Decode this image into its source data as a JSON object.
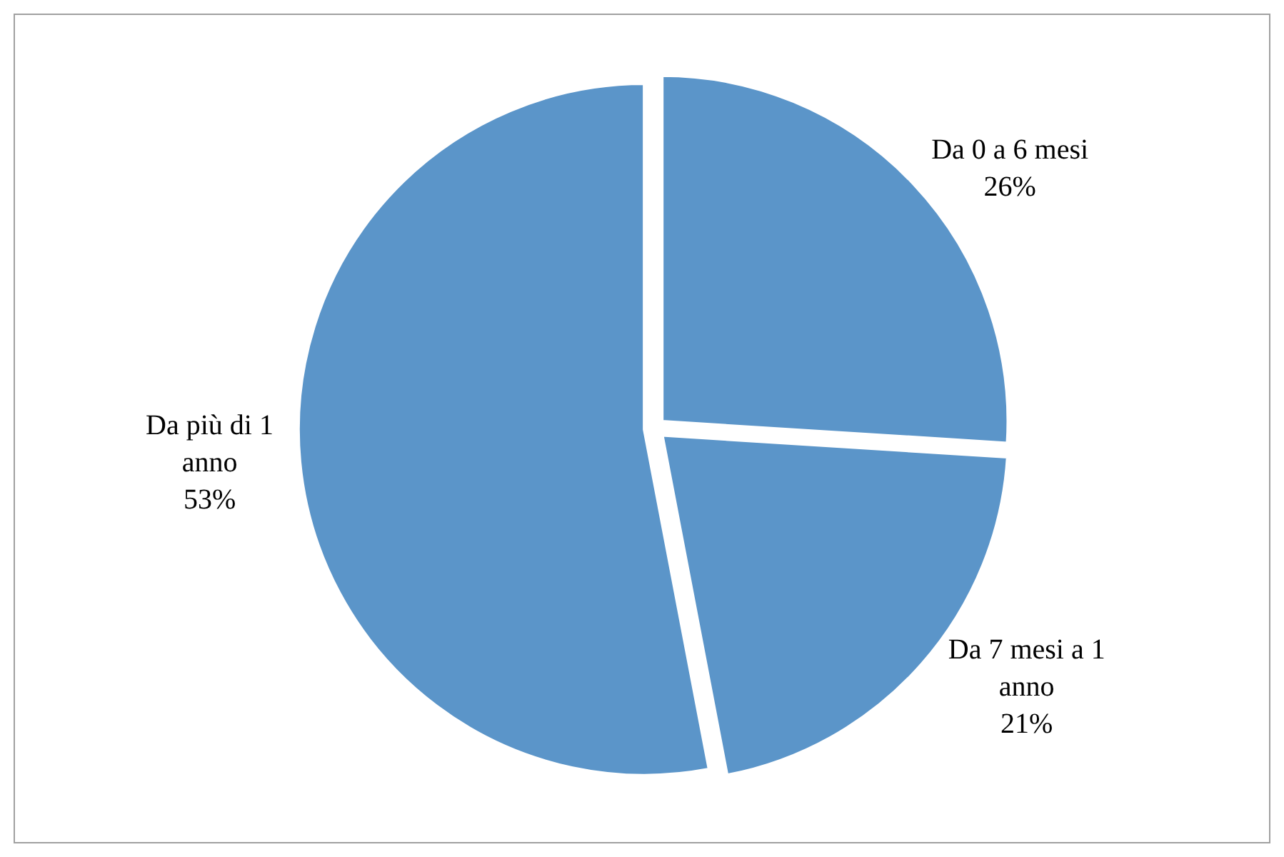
{
  "chart_data": {
    "type": "pie",
    "categories": [
      "Da 0 a 6 mesi",
      "Da 7 mesi a 1 anno",
      "Da più di 1 anno"
    ],
    "values": [
      26,
      21,
      53
    ],
    "colors": [
      "#5b95c9",
      "#5b95c9",
      "#5b95c9"
    ],
    "value_labels": [
      "26%",
      "21%",
      "53%"
    ],
    "legend": false
  }
}
